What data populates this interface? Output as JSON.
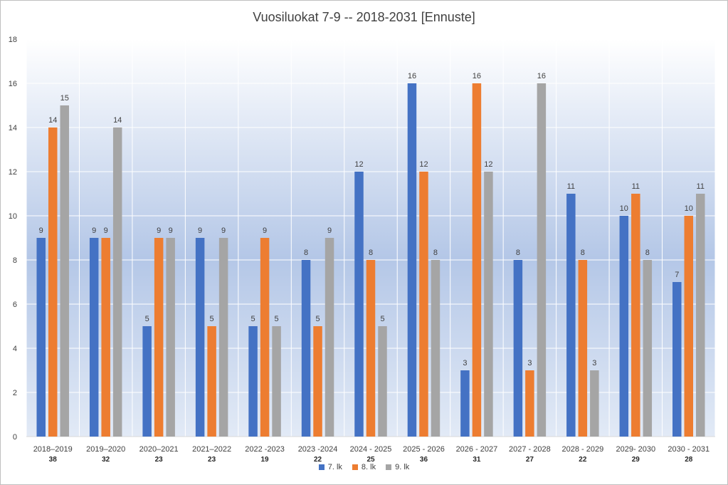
{
  "chart_data": {
    "type": "bar",
    "title": "Vuosiluokat 7-9 -- 2018-2031 [Ennuste]",
    "categories": [
      "2018–2019",
      "2019–2020",
      "2020–2021",
      "2021–2022",
      "2022 -2023",
      "2023 -2024",
      "2024 - 2025",
      "2025 - 2026",
      "2026 - 2027",
      "2027 - 2028",
      "2028 - 2029",
      "2029- 2030",
      "2030 - 2031"
    ],
    "totals": [
      "38",
      "32",
      "23",
      "23",
      "19",
      "22",
      "25",
      "36",
      "31",
      "27",
      "22",
      "29",
      "28"
    ],
    "series": [
      {
        "name": "7. lk",
        "color": "#4472C4",
        "values": [
          9,
          9,
          5,
          9,
          5,
          8,
          12,
          16,
          3,
          8,
          11,
          10,
          7
        ]
      },
      {
        "name": "8. lk",
        "color": "#ED7D31",
        "values": [
          14,
          9,
          9,
          5,
          9,
          5,
          8,
          12,
          16,
          3,
          8,
          11,
          10
        ]
      },
      {
        "name": "9. lk",
        "color": "#A5A5A5",
        "values": [
          15,
          14,
          9,
          9,
          5,
          9,
          5,
          8,
          12,
          16,
          3,
          8,
          11
        ]
      }
    ],
    "ylim": [
      0,
      18
    ],
    "yticks": [
      "0",
      "2",
      "4",
      "6",
      "8",
      "10",
      "12",
      "14",
      "16",
      "18"
    ],
    "grid": true,
    "legend_position": "bottom"
  }
}
